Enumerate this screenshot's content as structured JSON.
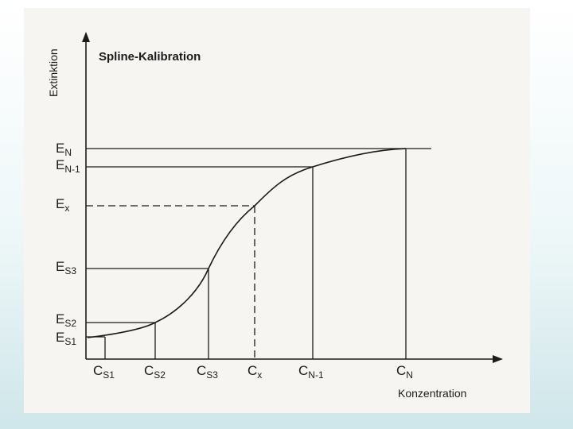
{
  "title": "Spline-Kalibration",
  "y_axis_label": "Extinktion",
  "x_axis_label": "Konzentration",
  "y_levels": [
    {
      "main": "E",
      "sub": "N"
    },
    {
      "main": "E",
      "sub": "N-1"
    },
    {
      "main": "E",
      "sub": "x"
    },
    {
      "main": "E",
      "sub": "S3"
    },
    {
      "main": "E",
      "sub": "S2"
    },
    {
      "main": "E",
      "sub": "S1"
    }
  ],
  "x_levels": [
    {
      "main": "C",
      "sub": "S1"
    },
    {
      "main": "C",
      "sub": "S2"
    },
    {
      "main": "C",
      "sub": "S3"
    },
    {
      "main": "C",
      "sub": "x"
    },
    {
      "main": "C",
      "sub": "N-1"
    },
    {
      "main": "C",
      "sub": "N"
    }
  ]
}
